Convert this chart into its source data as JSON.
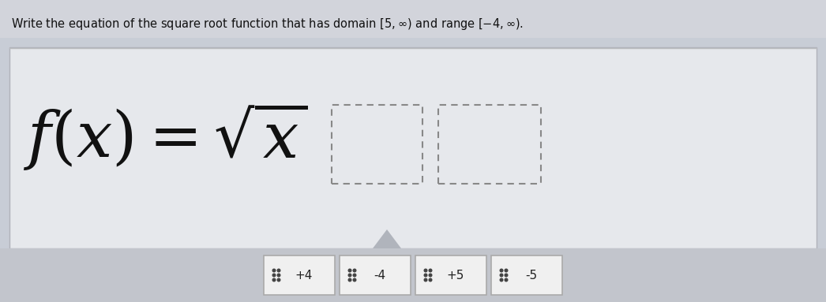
{
  "title": "Write the equation of the square root function that has domain $[5, \\infty)$ and range $[-4, \\infty)$.",
  "bg_page": "#c8cdd6",
  "bg_top_strip": "#c8cad2",
  "bg_white_panel": "#e8e9ec",
  "bg_bottom_strip": "#c0c4cc",
  "buttons": [
    "+4",
    "-4",
    "+5",
    "-5"
  ],
  "button_bg": "#f0f0f0",
  "button_border": "#aaaaaa",
  "dashed_box_color": "#888888",
  "formula_color": "#111111",
  "title_color": "#111111",
  "dot_color": "#444444",
  "triangle_color": "#b0b4bc",
  "panel_border": "#b0b2ba",
  "formula_fontsize": 58,
  "title_fontsize": 10.5,
  "button_fontsize": 11
}
